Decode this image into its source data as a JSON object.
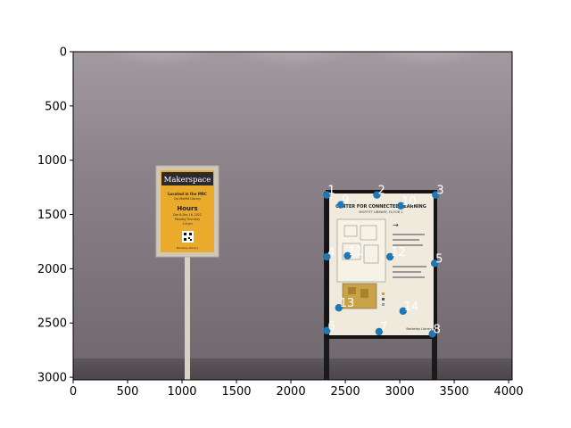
{
  "chart_data": {
    "type": "scatter",
    "title": "",
    "xlabel": "",
    "ylabel": "",
    "xlim": [
      0,
      4032
    ],
    "ylim": [
      3024,
      0
    ],
    "y_axis_inverted": true,
    "grid": false,
    "x_ticks": [
      "0",
      "500",
      "1000",
      "1500",
      "2000",
      "2500",
      "3000",
      "3500",
      "4000"
    ],
    "y_ticks": [
      "0",
      "500",
      "1000",
      "1500",
      "2000",
      "2500",
      "3000"
    ],
    "x_tick_values": [
      0,
      500,
      1000,
      1500,
      2000,
      2500,
      3000,
      3500,
      4000
    ],
    "y_tick_values": [
      0,
      500,
      1000,
      1500,
      2000,
      2500,
      3000
    ],
    "point_color": "#1f77b4",
    "label_color": "#ffffff",
    "points": [
      {
        "label": "1",
        "x": 2330,
        "y": 1320
      },
      {
        "label": "2",
        "x": 2790,
        "y": 1320
      },
      {
        "label": "3",
        "x": 3330,
        "y": 1320
      },
      {
        "label": "9",
        "x": 2460,
        "y": 1410
      },
      {
        "label": "10",
        "x": 3010,
        "y": 1420
      },
      {
        "label": "4",
        "x": 2330,
        "y": 1890
      },
      {
        "label": "11",
        "x": 2520,
        "y": 1880
      },
      {
        "label": "12",
        "x": 2910,
        "y": 1890
      },
      {
        "label": "5",
        "x": 3320,
        "y": 1950
      },
      {
        "label": "13",
        "x": 2440,
        "y": 2360
      },
      {
        "label": "14",
        "x": 3030,
        "y": 2390
      },
      {
        "label": "6",
        "x": 2330,
        "y": 2570
      },
      {
        "label": "7",
        "x": 2810,
        "y": 2580
      },
      {
        "label": "8",
        "x": 3300,
        "y": 2600
      }
    ]
  },
  "photo": {
    "wall_color": "#8a8188",
    "sign_left": {
      "title": "Makerspace",
      "line1": "Located in the MRC",
      "line2": "1st Moffitt Library",
      "hours_heading": "Hours",
      "hours_dates": "Dec 6-Dec 16, 2022",
      "hours_days": "Monday-Thursday",
      "hours_time": "1-6 pm",
      "footer": "Berkeley Library"
    },
    "sign_right": {
      "title": "CENTER FOR CONNECTED LEARNING",
      "subtitle": "MOFFITT LIBRARY, FLOOR 1",
      "footer": "Berkeley Library"
    }
  }
}
